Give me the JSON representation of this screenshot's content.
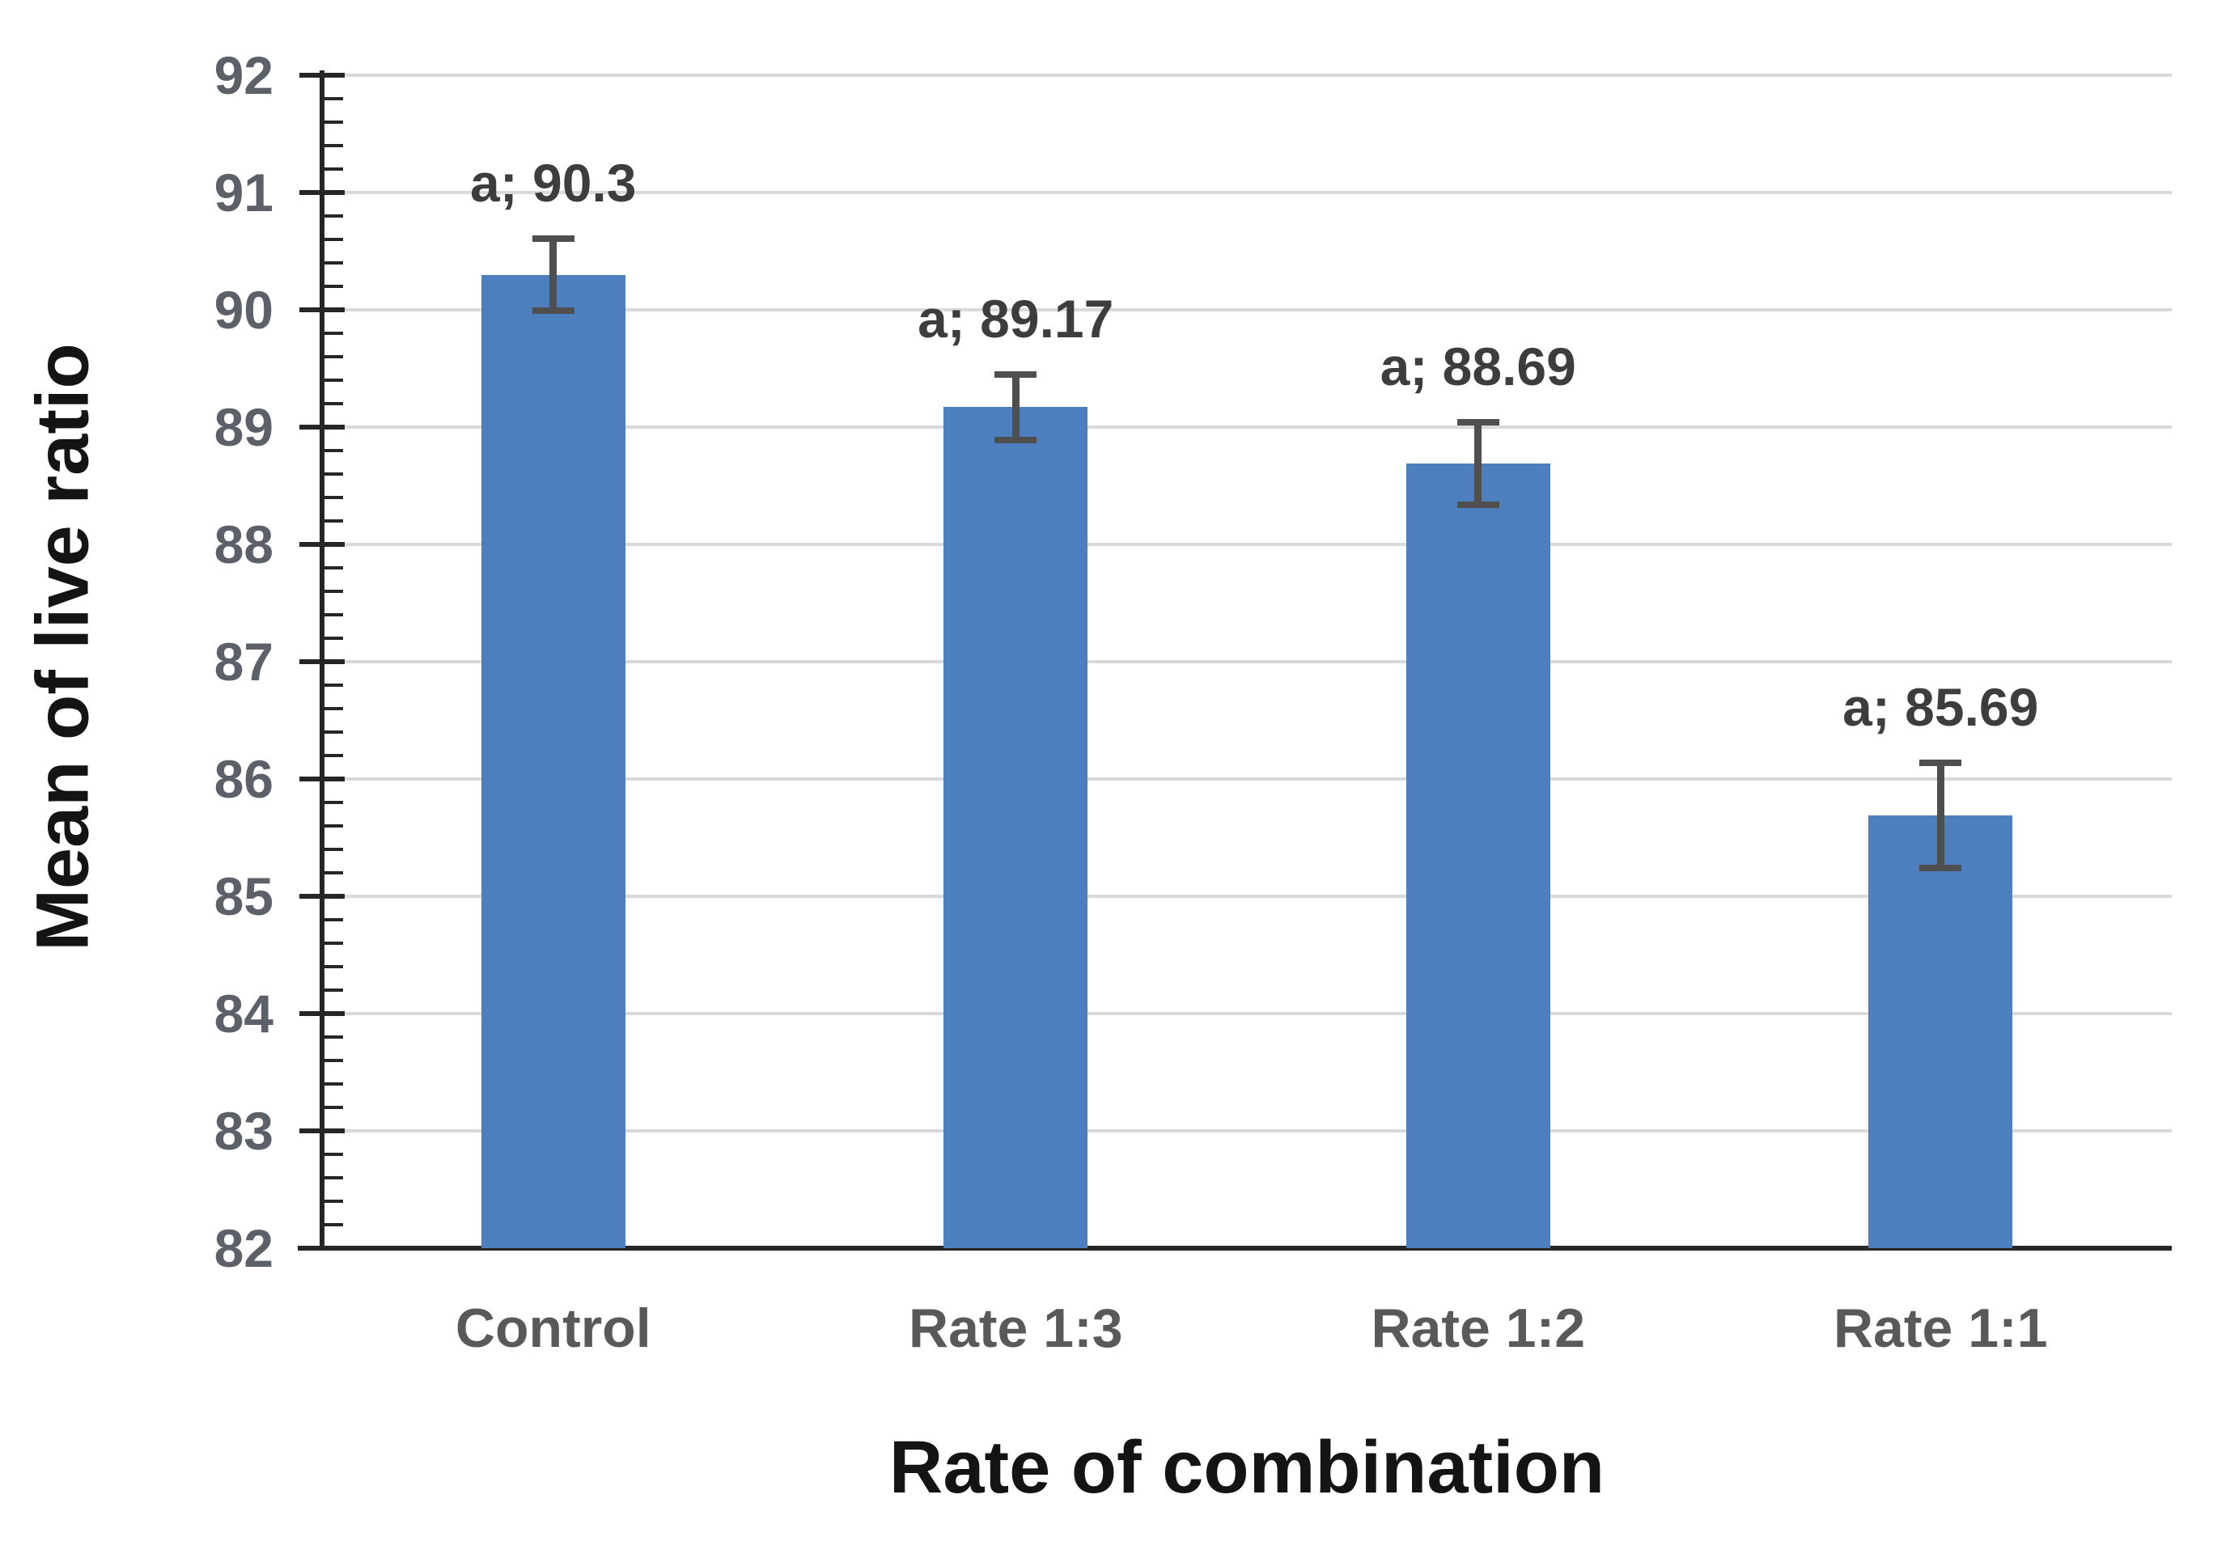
{
  "chart_data": {
    "type": "bar",
    "categories": [
      "Control",
      "Rate 1:3",
      "Rate 1:2",
      "Rate 1:1"
    ],
    "values": [
      90.3,
      89.17,
      88.69,
      85.69
    ],
    "errors": [
      0.31,
      0.28,
      0.35,
      0.45
    ],
    "point_labels": [
      "a; 90.3",
      "a; 89.17",
      "a; 88.69",
      "a; 85.69"
    ],
    "xlabel": "Rate of combination",
    "ylabel": "Mean of live ratio",
    "ylim": [
      82,
      92
    ],
    "ytick_step": 1,
    "minor_tick_step": 0.2,
    "grid": true,
    "legend_position": "none",
    "colors": {
      "bar": "#4d7ebd",
      "grid": "#d9d9d9",
      "axis": "#262626",
      "tick_label": "#5b6069",
      "category_label": "#595959",
      "data_label": "#3d3d3d",
      "error_bar": "#4f4f4f",
      "axis_title": "#141414",
      "background": "#ffffff"
    }
  }
}
